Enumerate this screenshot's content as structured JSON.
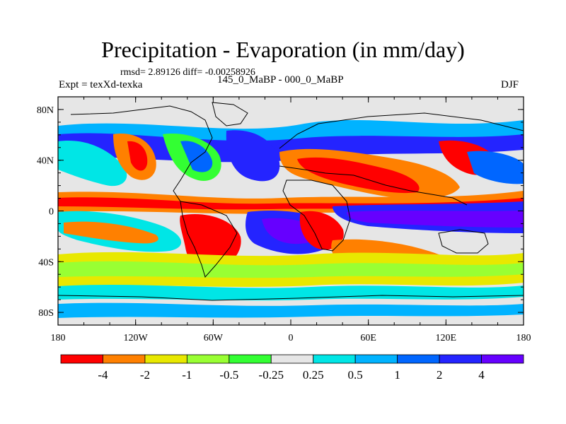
{
  "title": "Precipitation - Evaporation (in mm/day)",
  "stats": "rmsd= 2.89126 diff= -0.00258926",
  "experiment": "Expt = texXd-texka",
  "case_compare": "145_0_MaBP - 000_0_MaBP",
  "season": "DJF",
  "axes": {
    "lat_ticks": [
      "80N",
      "40N",
      "0",
      "40S",
      "80S"
    ],
    "lon_ticks": [
      "180",
      "120W",
      "60W",
      "0",
      "60E",
      "120E",
      "180"
    ]
  },
  "colorbar": {
    "colors": [
      "#ff0000",
      "#ff8000",
      "#e8e800",
      "#99ff33",
      "#33ff33",
      "#e6e6e6",
      "#00e6e6",
      "#00b3ff",
      "#0066ff",
      "#2424ff",
      "#6600ff"
    ],
    "labels": [
      "-4",
      "-2",
      "-1",
      "-0.5",
      "-0.25",
      "0.25",
      "0.5",
      "1",
      "2",
      "4"
    ]
  },
  "map_fields": {
    "background": "#e6e6e6",
    "deep_negative": "#ff0000",
    "negative": "#ff8000",
    "weak_negative": "#e8e800",
    "slight_negative": "#99ff33",
    "near_zero_neg": "#33ff33",
    "slight_positive": "#00e6e6",
    "weak_positive": "#00b3ff",
    "positive": "#0066ff",
    "strong_positive": "#2424ff",
    "max_positive": "#6600ff"
  }
}
